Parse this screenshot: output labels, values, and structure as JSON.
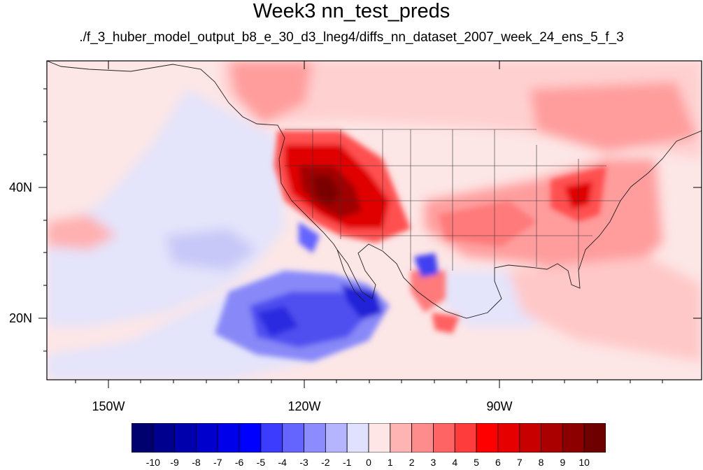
{
  "title": "Week3 nn_test_preds",
  "subtitle": "./f_3_huber_model_output_b8_e_30_d3_lneg4/diffs_nn_dataset_2007_week_24_ens_5_f_3",
  "map": {
    "projection": "cylindrical-equidistant",
    "lon_range": [
      -159.3,
      -59.3
    ],
    "lat_range": [
      10.5,
      59.5
    ],
    "lat_labels": [
      {
        "value": 40,
        "text": "40N"
      },
      {
        "value": 20,
        "text": "20N"
      }
    ],
    "lon_labels": [
      {
        "value": -150,
        "text": "150W"
      },
      {
        "value": -120,
        "text": "120W"
      },
      {
        "value": -90,
        "text": "90W"
      }
    ],
    "field": "forecast temperature difference",
    "colormap": "blue-white-red diverging"
  },
  "colorbar": {
    "levels": [
      "-10",
      "-9",
      "-8",
      "-7",
      "-6",
      "-5",
      "-4",
      "-3",
      "-2",
      "-1",
      "0",
      "1",
      "2",
      "3",
      "4",
      "5",
      "6",
      "7",
      "8",
      "9",
      "10"
    ],
    "colors": [
      "#00006e",
      "#00008e",
      "#0000ad",
      "#0000cd",
      "#0000ea",
      "#0000ff",
      "#3c3cff",
      "#6464ff",
      "#8c8cff",
      "#b4b4ff",
      "#e0e0ff",
      "#ffe6e6",
      "#ffb4b4",
      "#ff8c8c",
      "#ff6464",
      "#ff3c3c",
      "#ff0000",
      "#e60000",
      "#c80000",
      "#aa0000",
      "#8c0000",
      "#6e0000"
    ]
  }
}
